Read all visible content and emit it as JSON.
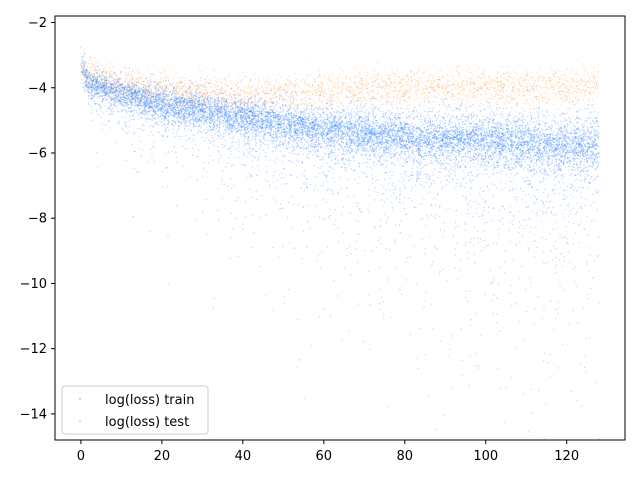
{
  "chart_data": {
    "type": "scatter",
    "title": "",
    "xlabel": "",
    "ylabel": "",
    "xlim": [
      -6.4,
      134.4
    ],
    "ylim": [
      -14.8,
      -1.8
    ],
    "x_ticks": [
      0,
      20,
      40,
      60,
      80,
      100,
      120
    ],
    "y_ticks": [
      -14,
      -12,
      -10,
      -8,
      -6,
      -4,
      -2
    ],
    "x_tick_labels": [
      "0",
      "20",
      "40",
      "60",
      "80",
      "100",
      "120"
    ],
    "y_tick_labels": [
      "−14",
      "−12",
      "−10",
      "−8",
      "−6",
      "−4",
      "−2"
    ],
    "grid": false,
    "legend": {
      "placement": "lower-left"
    },
    "series": [
      {
        "name": "log(loss) train",
        "color": "#1f77ff",
        "x_range": [
          0,
          128
        ],
        "trend": [
          {
            "x": 0,
            "y": -3.3
          },
          {
            "x": 2,
            "y": -3.9
          },
          {
            "x": 10,
            "y": -4.2
          },
          {
            "x": 20,
            "y": -4.5
          },
          {
            "x": 40,
            "y": -4.9
          },
          {
            "x": 60,
            "y": -5.3
          },
          {
            "x": 80,
            "y": -5.5
          },
          {
            "x": 100,
            "y": -5.6
          },
          {
            "x": 128,
            "y": -5.8
          }
        ],
        "band": "upper edge near -3.5 → -5.0; lower tail spreading to about -14 at x≈120"
      },
      {
        "name": "log(loss) test",
        "color": "#ff7f0e",
        "x_range": [
          0,
          128
        ],
        "trend": [
          {
            "x": 0,
            "y": -3.4
          },
          {
            "x": 10,
            "y": -3.9
          },
          {
            "x": 20,
            "y": -4.1
          },
          {
            "x": 40,
            "y": -4.2
          },
          {
            "x": 60,
            "y": -4.1
          },
          {
            "x": 80,
            "y": -4.0
          },
          {
            "x": 100,
            "y": -4.0
          },
          {
            "x": 128,
            "y": -4.0
          }
        ],
        "band": "tight band roughly ±0.5 around the trend"
      }
    ]
  }
}
